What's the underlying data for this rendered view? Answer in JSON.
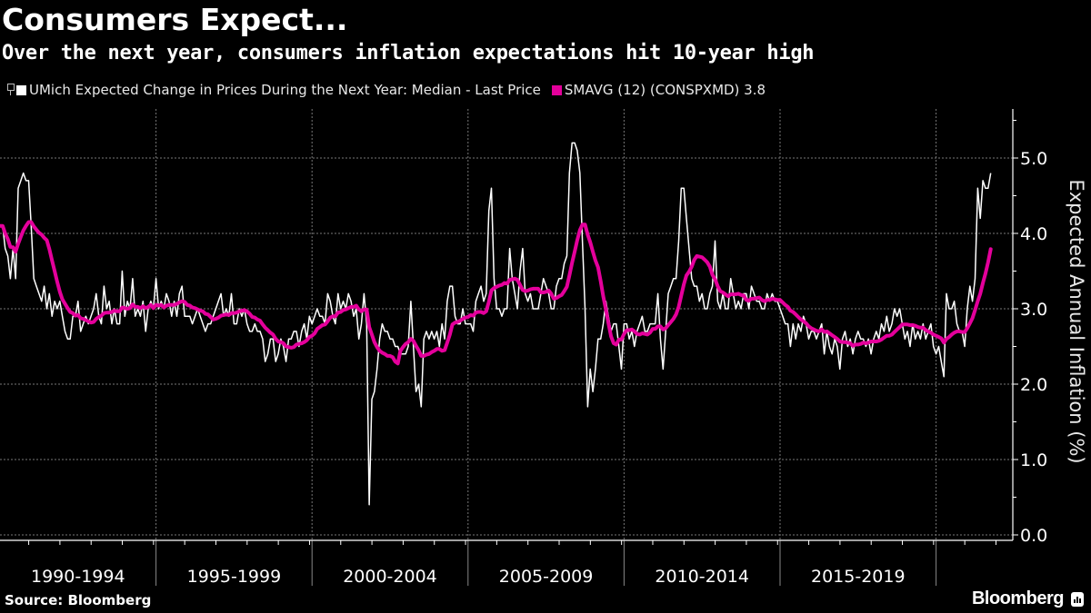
{
  "header": {
    "title": "Consumers Expect...",
    "subtitle": "Over the next year, consumers inflation expectations hit 10-year high"
  },
  "legend": {
    "items": [
      {
        "label": "UMich Expected Change in Prices During the Next Year: Median - Last Price",
        "color": "#ffffff"
      },
      {
        "label": "SMAVG (12) (CONSPXMD) 3.8",
        "color": "#e4009b"
      }
    ]
  },
  "footer": {
    "source": "Source: Bloomberg",
    "brand": "Bloomberg"
  },
  "chart_data": {
    "type": "line",
    "title": "Consumers Expect...",
    "subtitle": "Over the next year, consumers inflation expectations hit 10-year high",
    "xlabel": "",
    "ylabel": "Expected Annual Inflation (%)",
    "ylim": [
      0,
      5.6
    ],
    "yticks": [
      "0.0",
      "1.0",
      "2.0",
      "3.0",
      "4.0",
      "5.0"
    ],
    "ytick_values": [
      0,
      1,
      2,
      3,
      4,
      5
    ],
    "x_start": "1990-01",
    "x_end": "2021-10",
    "frequency": "monthly",
    "x_category_labels": [
      "1990-1994",
      "1995-1999",
      "2000-2004",
      "2005-2009",
      "2010-2014",
      "2015-2019"
    ],
    "x_category_starts": [
      1990,
      1995,
      2000,
      2005,
      2010,
      2015,
      2020
    ],
    "grid": true,
    "legend_position": "top-left",
    "series": [
      {
        "name": "UMich Expected Change in Prices During the Next Year: Median - Last Price",
        "color": "#ffffff",
        "values": [
          4.1,
          4.1,
          3.8,
          3.7,
          3.4,
          3.8,
          3.4,
          4.6,
          4.7,
          4.8,
          4.7,
          4.7,
          4.1,
          3.4,
          3.3,
          3.2,
          3.1,
          3.3,
          3.0,
          3.2,
          2.9,
          3.1,
          3.0,
          3.1,
          2.9,
          2.7,
          2.6,
          2.6,
          2.9,
          2.9,
          3.1,
          2.7,
          2.8,
          2.9,
          2.8,
          2.9,
          3.0,
          3.2,
          2.9,
          2.8,
          3.3,
          3.0,
          3.1,
          2.8,
          3.0,
          2.8,
          2.8,
          3.5,
          2.9,
          3.1,
          3.0,
          3.4,
          2.9,
          3.0,
          2.9,
          3.1,
          2.7,
          3.0,
          3.1,
          3.0,
          3.4,
          3.0,
          3.1,
          3.0,
          3.2,
          3.1,
          2.9,
          3.1,
          2.9,
          3.2,
          3.3,
          2.9,
          2.9,
          2.9,
          2.8,
          2.9,
          3.0,
          2.9,
          2.8,
          2.7,
          2.8,
          2.8,
          2.9,
          3.0,
          3.1,
          3.2,
          2.9,
          3.0,
          2.9,
          3.2,
          2.8,
          2.8,
          3.0,
          2.9,
          3.0,
          2.8,
          2.7,
          2.7,
          2.8,
          2.7,
          2.7,
          2.6,
          2.3,
          2.4,
          2.6,
          2.6,
          2.3,
          2.4,
          2.6,
          2.5,
          2.3,
          2.6,
          2.6,
          2.7,
          2.7,
          2.5,
          2.7,
          2.8,
          2.6,
          2.9,
          2.8,
          2.9,
          3.0,
          2.9,
          2.9,
          2.8,
          3.2,
          3.1,
          2.9,
          2.8,
          3.2,
          3.0,
          3.1,
          3.0,
          3.2,
          3.1,
          2.9,
          3.0,
          2.6,
          2.8,
          3.2,
          2.8,
          0.4,
          1.8,
          1.9,
          2.2,
          2.6,
          2.8,
          2.7,
          2.7,
          2.6,
          2.6,
          2.5,
          2.5,
          2.4,
          2.4,
          2.4,
          2.5,
          3.1,
          2.5,
          1.9,
          2.0,
          1.7,
          2.6,
          2.7,
          2.6,
          2.7,
          2.6,
          2.7,
          2.5,
          2.8,
          2.6,
          3.1,
          3.3,
          3.3,
          2.9,
          2.8,
          2.8,
          3.0,
          2.8,
          2.8,
          2.8,
          2.7,
          3.1,
          3.2,
          3.3,
          3.1,
          3.2,
          4.3,
          4.6,
          3.4,
          3.0,
          3.0,
          2.9,
          3.0,
          3.0,
          3.8,
          3.4,
          3.2,
          3.0,
          3.5,
          3.8,
          3.2,
          3.1,
          3.2,
          3.0,
          3.0,
          3.0,
          3.2,
          3.4,
          3.3,
          3.2,
          3.0,
          3.0,
          3.3,
          3.4,
          3.4,
          3.6,
          3.7,
          4.8,
          5.2,
          5.2,
          5.1,
          4.8,
          3.9,
          3.0,
          1.7,
          2.2,
          1.9,
          2.2,
          2.6,
          2.6,
          2.8,
          3.1,
          2.9,
          2.7,
          2.8,
          2.8,
          2.5,
          2.2,
          2.8,
          2.8,
          2.6,
          2.7,
          2.5,
          2.7,
          2.8,
          2.9,
          2.7,
          2.7,
          2.8,
          2.8,
          2.8,
          3.2,
          2.6,
          2.2,
          2.7,
          3.2,
          3.3,
          3.4,
          3.4,
          3.9,
          4.6,
          4.6,
          4.2,
          3.8,
          3.4,
          3.3,
          3.3,
          3.1,
          3.2,
          3.0,
          3.0,
          3.2,
          3.3,
          3.9,
          3.1,
          3.0,
          3.2,
          3.0,
          3.0,
          3.4,
          3.2,
          3.0,
          3.1,
          3.0,
          3.2,
          3.2,
          3.0,
          3.3,
          3.2,
          3.1,
          3.1,
          3.0,
          3.0,
          3.2,
          3.1,
          3.2,
          3.1,
          3.1,
          3.0,
          2.9,
          2.8,
          2.8,
          2.5,
          2.8,
          2.6,
          2.8,
          2.7,
          2.9,
          2.8,
          2.6,
          2.7,
          2.7,
          2.6,
          2.7,
          2.8,
          2.4,
          2.7,
          2.5,
          2.4,
          2.6,
          2.5,
          2.2,
          2.6,
          2.7,
          2.5,
          2.6,
          2.4,
          2.6,
          2.7,
          2.6,
          2.6,
          2.5,
          2.6,
          2.4,
          2.6,
          2.7,
          2.6,
          2.8,
          2.7,
          2.9,
          2.7,
          2.8,
          3.0,
          2.9,
          3.0,
          2.8,
          2.6,
          2.7,
          2.5,
          2.8,
          2.6,
          2.7,
          2.6,
          2.8,
          2.6,
          2.7,
          2.8,
          2.5,
          2.4,
          2.5,
          2.3,
          2.1,
          3.2,
          3.0,
          3.0,
          3.1,
          2.8,
          2.7,
          2.7,
          2.5,
          3.0,
          3.3,
          3.1,
          3.4,
          4.6,
          4.2,
          4.7,
          4.6,
          4.6,
          4.8
        ]
      },
      {
        "name": "SMAVG (12) (CONSPXMD)",
        "color": "#e4009b",
        "window": 12,
        "last_value": 3.8
      }
    ]
  }
}
